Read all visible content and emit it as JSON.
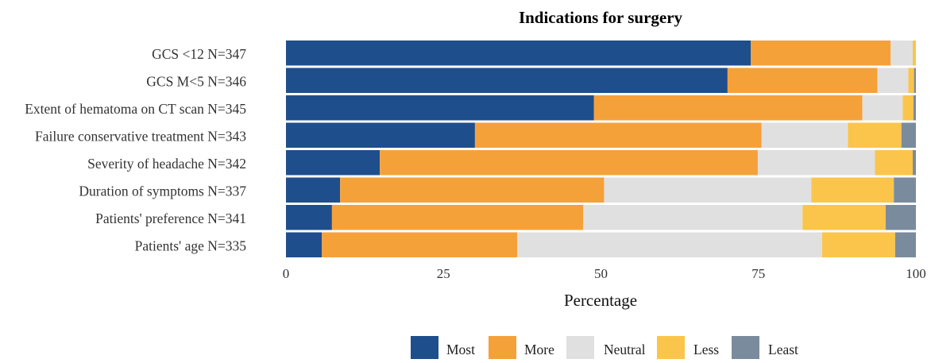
{
  "chart_data": {
    "type": "bar",
    "orientation": "horizontal",
    "stacked": true,
    "title": "Indications for surgery",
    "xlabel": "Percentage",
    "ylabel": "",
    "xlim": [
      0,
      100
    ],
    "xticks": [
      "0",
      "25",
      "50",
      "75",
      "100"
    ],
    "grid": false,
    "legend_position": "bottom",
    "categories": [
      "GCS <12 N=347",
      "GCS M<5 N=346",
      "Extent of hematoma on CT scan N=345",
      "Failure conservative treatment N=343",
      "Severity of headache N=342",
      "Duration of symptoms N=337",
      "Patients' preference N=341",
      "Patients' age N=335"
    ],
    "series": [
      {
        "name": "Most",
        "color": "#1f4e8c",
        "values": [
          73.8,
          70.1,
          48.9,
          30.0,
          14.9,
          8.6,
          7.3,
          5.7
        ]
      },
      {
        "name": "More",
        "color": "#f5a13a",
        "values": [
          22.2,
          23.8,
          42.6,
          45.5,
          60.0,
          41.9,
          39.9,
          31.0
        ]
      },
      {
        "name": "Neutral",
        "color": "#e0e0e0",
        "values": [
          3.5,
          4.9,
          6.4,
          13.7,
          18.6,
          32.9,
          34.8,
          48.4
        ]
      },
      {
        "name": "Less",
        "color": "#fac54a",
        "values": [
          0.5,
          0.9,
          1.7,
          8.5,
          6.0,
          13.1,
          13.2,
          11.6
        ]
      },
      {
        "name": "Least",
        "color": "#7a8b9e",
        "values": [
          0.0,
          0.3,
          0.4,
          2.3,
          0.5,
          3.5,
          4.8,
          3.3
        ]
      }
    ]
  }
}
